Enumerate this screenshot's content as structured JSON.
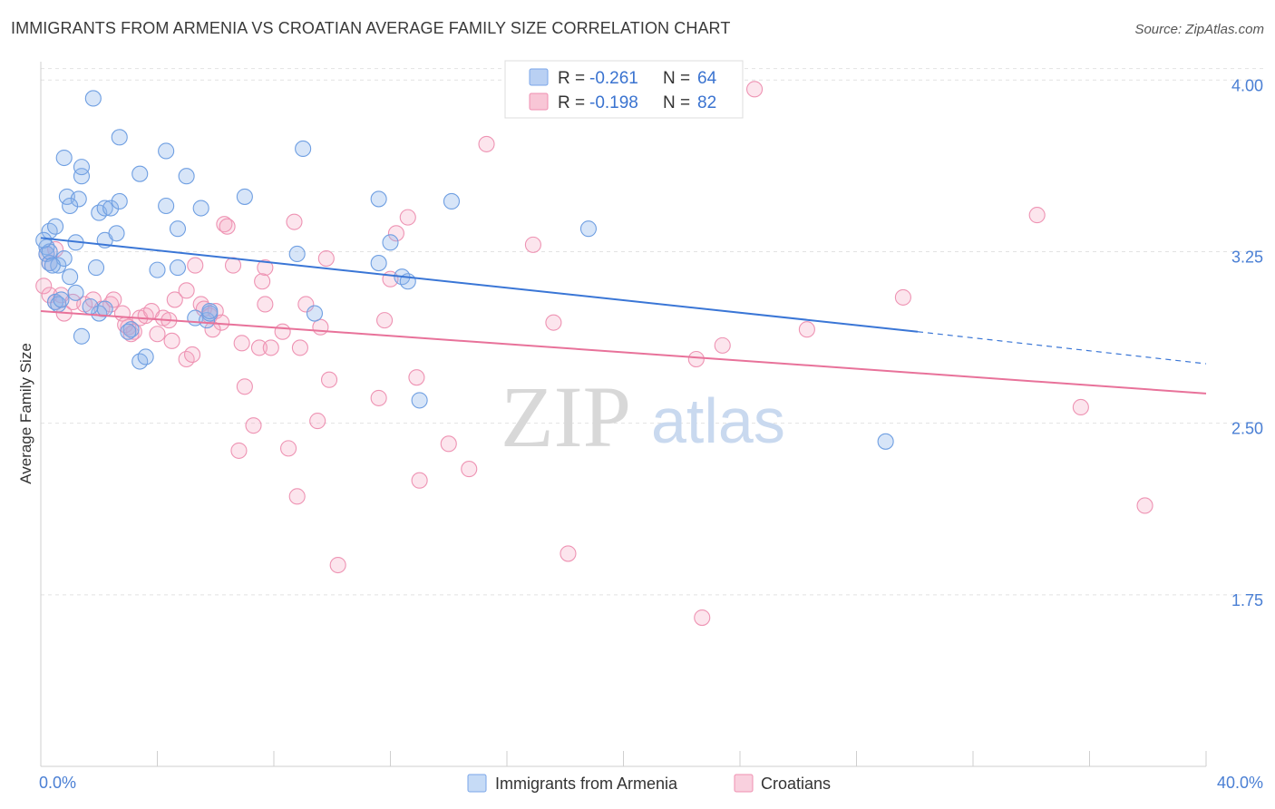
{
  "title": "IMMIGRANTS FROM ARMENIA VS CROATIAN AVERAGE FAMILY SIZE CORRELATION CHART",
  "source": "Source: ZipAtlas.com",
  "watermark": {
    "zip": "ZIP",
    "atlas": "atlas"
  },
  "legend_top": [
    {
      "r_label": "R =",
      "r_value": "-0.261",
      "n_label": "N =",
      "n_value": "64",
      "color": "#7aa6e8",
      "fill": "#b9d0f3"
    },
    {
      "r_label": "R =",
      "r_value": "-0.198",
      "n_label": "N =",
      "n_value": "82",
      "color": "#ef8fb0",
      "fill": "#f8c6d6"
    }
  ],
  "legend_bottom": [
    {
      "label": "Immigrants from Armenia",
      "color": "#7aa6e8",
      "fill": "#c6dbf6"
    },
    {
      "label": "Croatians",
      "color": "#ef8fb0",
      "fill": "#f9d0de"
    }
  ],
  "colors": {
    "blue": "#3a76d6",
    "pink": "#e8729a",
    "tick": "#4a7fd4",
    "grid": "#e2e2e2"
  },
  "chart_data": {
    "type": "scatter",
    "title": "IMMIGRANTS FROM ARMENIA VS CROATIAN AVERAGE FAMILY SIZE CORRELATION CHART",
    "xlabel": "",
    "ylabel": "Average Family Size",
    "xlim": [
      0,
      40
    ],
    "ylim": [
      1.0,
      4.12
    ],
    "x_tick_labels": [
      "0.0%",
      "40.0%"
    ],
    "y_ticks": [
      1.75,
      2.5,
      3.25,
      4.0
    ],
    "y_tick_labels": [
      "1.75",
      "2.50",
      "3.25",
      "4.00"
    ],
    "grid": true,
    "series": [
      {
        "name": "Immigrants from Armenia",
        "points": [
          [
            1.8,
            3.92
          ],
          [
            2.7,
            3.75
          ],
          [
            3.4,
            3.59
          ],
          [
            4.3,
            3.69
          ],
          [
            5.0,
            3.58
          ],
          [
            0.8,
            3.66
          ],
          [
            1.4,
            3.58
          ],
          [
            1.4,
            3.62
          ],
          [
            0.9,
            3.49
          ],
          [
            1.3,
            3.48
          ],
          [
            1.0,
            3.45
          ],
          [
            2.0,
            3.42
          ],
          [
            2.2,
            3.44
          ],
          [
            2.4,
            3.44
          ],
          [
            2.7,
            3.47
          ],
          [
            4.3,
            3.45
          ],
          [
            5.5,
            3.44
          ],
          [
            7.0,
            3.49
          ],
          [
            9.0,
            3.7
          ],
          [
            11.6,
            3.48
          ],
          [
            14.1,
            3.47
          ],
          [
            18.8,
            3.35
          ],
          [
            0.3,
            3.34
          ],
          [
            0.5,
            3.36
          ],
          [
            1.2,
            3.29
          ],
          [
            2.2,
            3.3
          ],
          [
            2.6,
            3.33
          ],
          [
            4.7,
            3.35
          ],
          [
            0.2,
            3.27
          ],
          [
            0.2,
            3.24
          ],
          [
            0.3,
            3.2
          ],
          [
            0.6,
            3.19
          ],
          [
            0.8,
            3.22
          ],
          [
            1.0,
            3.14
          ],
          [
            1.9,
            3.18
          ],
          [
            4.0,
            3.17
          ],
          [
            4.7,
            3.18
          ],
          [
            8.8,
            3.24
          ],
          [
            11.6,
            3.2
          ],
          [
            12.0,
            3.29
          ],
          [
            12.4,
            3.14
          ],
          [
            12.6,
            3.12
          ],
          [
            0.5,
            3.03
          ],
          [
            0.6,
            3.02
          ],
          [
            0.7,
            3.04
          ],
          [
            1.2,
            3.07
          ],
          [
            2.0,
            2.98
          ],
          [
            3.1,
            2.91
          ],
          [
            3.0,
            2.9
          ],
          [
            5.3,
            2.96
          ],
          [
            5.7,
            2.95
          ],
          [
            5.8,
            2.98
          ],
          [
            9.4,
            2.98
          ],
          [
            1.4,
            2.88
          ],
          [
            3.4,
            2.77
          ],
          [
            3.6,
            2.79
          ],
          [
            13.0,
            2.6
          ],
          [
            29.0,
            2.42
          ],
          [
            0.3,
            3.25
          ],
          [
            0.1,
            3.3
          ],
          [
            2.2,
            3.0
          ],
          [
            1.7,
            3.01
          ],
          [
            0.4,
            3.19
          ],
          [
            5.8,
            2.99
          ]
        ]
      },
      {
        "name": "Croatians",
        "points": [
          [
            24.5,
            3.96
          ],
          [
            15.3,
            3.72
          ],
          [
            34.2,
            3.41
          ],
          [
            12.6,
            3.4
          ],
          [
            6.3,
            3.37
          ],
          [
            6.4,
            3.36
          ],
          [
            8.7,
            3.38
          ],
          [
            12.2,
            3.33
          ],
          [
            16.9,
            3.28
          ],
          [
            0.2,
            3.24
          ],
          [
            0.5,
            3.26
          ],
          [
            9.8,
            3.22
          ],
          [
            6.6,
            3.19
          ],
          [
            7.7,
            3.18
          ],
          [
            5.3,
            3.19
          ],
          [
            7.6,
            3.12
          ],
          [
            12.0,
            3.13
          ],
          [
            0.1,
            3.1
          ],
          [
            0.3,
            3.06
          ],
          [
            0.5,
            3.03
          ],
          [
            0.7,
            3.06
          ],
          [
            1.1,
            3.03
          ],
          [
            1.5,
            3.02
          ],
          [
            1.8,
            3.04
          ],
          [
            2.1,
            3.0
          ],
          [
            2.4,
            3.02
          ],
          [
            2.5,
            3.04
          ],
          [
            2.8,
            2.98
          ],
          [
            3.4,
            2.96
          ],
          [
            3.6,
            2.97
          ],
          [
            3.8,
            2.99
          ],
          [
            4.2,
            2.96
          ],
          [
            4.4,
            2.95
          ],
          [
            4.6,
            3.04
          ],
          [
            5.0,
            3.08
          ],
          [
            5.5,
            3.02
          ],
          [
            5.6,
            3.0
          ],
          [
            5.8,
            2.97
          ],
          [
            6.0,
            2.99
          ],
          [
            6.2,
            2.94
          ],
          [
            7.7,
            3.02
          ],
          [
            9.1,
            3.02
          ],
          [
            0.8,
            2.98
          ],
          [
            3.0,
            2.92
          ],
          [
            3.2,
            2.9
          ],
          [
            4.0,
            2.89
          ],
          [
            4.5,
            2.86
          ],
          [
            5.0,
            2.78
          ],
          [
            5.2,
            2.8
          ],
          [
            5.9,
            2.91
          ],
          [
            6.9,
            2.85
          ],
          [
            7.5,
            2.83
          ],
          [
            7.9,
            2.83
          ],
          [
            8.3,
            2.9
          ],
          [
            8.9,
            2.83
          ],
          [
            9.6,
            2.92
          ],
          [
            11.8,
            2.95
          ],
          [
            17.6,
            2.94
          ],
          [
            23.4,
            2.84
          ],
          [
            26.3,
            2.91
          ],
          [
            9.9,
            2.69
          ],
          [
            7.0,
            2.66
          ],
          [
            11.6,
            2.61
          ],
          [
            12.9,
            2.7
          ],
          [
            22.5,
            2.78
          ],
          [
            35.7,
            2.57
          ],
          [
            29.6,
            3.05
          ],
          [
            7.3,
            2.49
          ],
          [
            9.5,
            2.51
          ],
          [
            6.8,
            2.38
          ],
          [
            8.5,
            2.39
          ],
          [
            14.0,
            2.41
          ],
          [
            13.0,
            2.25
          ],
          [
            14.7,
            2.3
          ],
          [
            8.8,
            2.18
          ],
          [
            37.9,
            2.14
          ],
          [
            18.1,
            1.93
          ],
          [
            10.2,
            1.88
          ],
          [
            22.7,
            1.65
          ],
          [
            2.9,
            2.93
          ],
          [
            3.1,
            2.89
          ],
          [
            0.3,
            3.2
          ]
        ]
      }
    ],
    "trendlines": [
      {
        "series": "Immigrants from Armenia",
        "x": [
          0,
          30.1
        ],
        "y": [
          3.31,
          2.9
        ],
        "dashed_extension_to_x": 40,
        "dashed_extension_y": 2.76
      },
      {
        "series": "Croatians",
        "x": [
          0,
          40
        ],
        "y": [
          2.99,
          2.63
        ]
      }
    ],
    "legend_stats": [
      {
        "series": "Immigrants from Armenia",
        "R": -0.261,
        "N": 64
      },
      {
        "series": "Croatians",
        "R": -0.198,
        "N": 82
      }
    ]
  }
}
